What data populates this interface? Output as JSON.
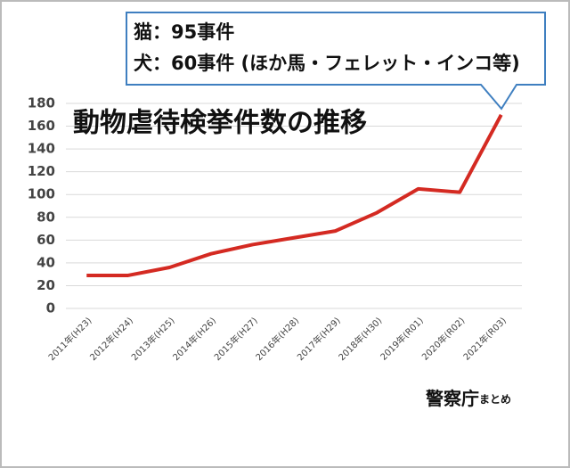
{
  "chart_data": {
    "type": "line",
    "title": "動物虐待検挙件数の推移",
    "annotations": [
      "猫：95事件",
      "犬：60事件 (ほか馬・フェレット・インコ等)"
    ],
    "source": {
      "main": "警察庁",
      "suffix": "まとめ"
    },
    "categories": [
      "2011年(H23)",
      "2012年(H24)",
      "2013年(H25)",
      "2014年(H26)",
      "2015年(H27)",
      "2016年(H28)",
      "2017年(H29)",
      "2018年(H30)",
      "2019年(R01)",
      "2020年(R02)",
      "2021年(R03)"
    ],
    "values": [
      29,
      29,
      36,
      48,
      56,
      62,
      68,
      84,
      105,
      102,
      170
    ],
    "color": "#d42a22",
    "ylim": [
      0,
      180
    ],
    "yticks": [
      0,
      20,
      40,
      60,
      80,
      100,
      120,
      140,
      160,
      180
    ],
    "grid": true
  }
}
